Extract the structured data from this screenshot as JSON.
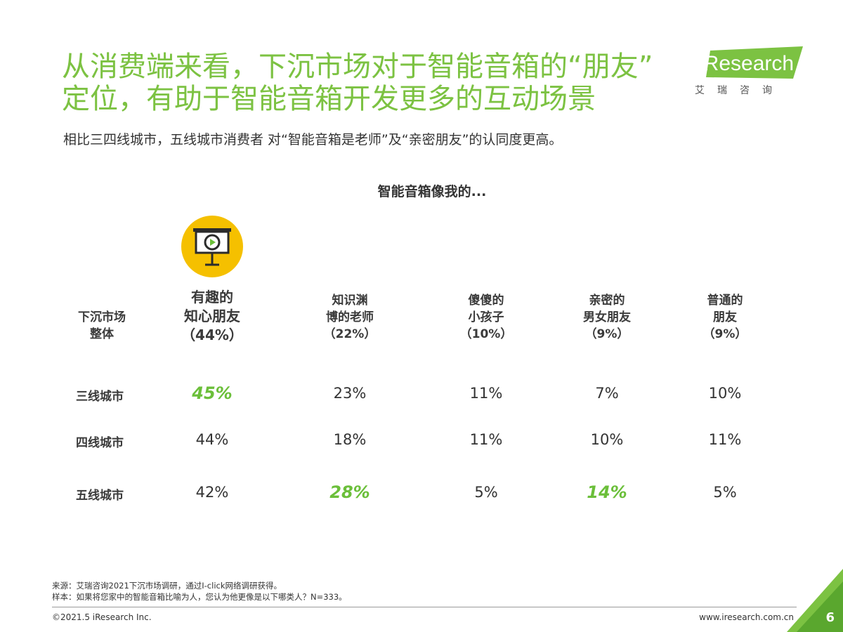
{
  "title_lines": [
    "从消费端来看，下沉市场对于智能音箱的“朋友”",
    "定位，有助于智能音箱开发更多的互动场景"
  ],
  "subtitle": "相比三四线城市，五线城市消费者 对“智能音箱是老师”及“亲密朋友”的认同度更高。",
  "logo": {
    "word": "iResearch",
    "cn": "艾瑞咨询"
  },
  "chart_title": "智能音箱像我的...",
  "icon": "presentation-play-icon",
  "chart_data": {
    "type": "table",
    "row_header": [
      "下沉市场",
      "整体"
    ],
    "columns": [
      {
        "label_lines": [
          "有趣的",
          "知心朋友",
          "（44%）"
        ],
        "overall": 44
      },
      {
        "label_lines": [
          "知识渊",
          "博的老师",
          "（22%）"
        ],
        "overall": 22
      },
      {
        "label_lines": [
          "傻傻的",
          "小孩子",
          "（10%）"
        ],
        "overall": 10
      },
      {
        "label_lines": [
          "亲密的",
          "男女朋友",
          "（9%）"
        ],
        "overall": 9
      },
      {
        "label_lines": [
          "普通的",
          "朋友",
          "（9%）"
        ],
        "overall": 9
      }
    ],
    "rows": [
      {
        "label": "三线城市",
        "values": [
          "45%",
          "23%",
          "11%",
          "7%",
          "10%"
        ],
        "highlight": [
          true,
          false,
          false,
          false,
          false
        ]
      },
      {
        "label": "四线城市",
        "values": [
          "44%",
          "18%",
          "11%",
          "10%",
          "11%"
        ],
        "highlight": [
          false,
          false,
          false,
          false,
          false
        ]
      },
      {
        "label": "五线城市",
        "values": [
          "42%",
          "28%",
          "5%",
          "14%",
          "5%"
        ],
        "highlight": [
          false,
          true,
          false,
          true,
          false
        ]
      }
    ]
  },
  "notes": {
    "source": "来源：艾瑞咨询2021下沉市场调研，通过I-click网络调研获得。",
    "sample": "样本：如果将您家中的智能音箱比喻为人，您认为他更像是以下哪类人？N=333。"
  },
  "footer": {
    "copyright": "©2021.5 iResearch Inc.",
    "website": "www.iresearch.com.cn",
    "page": "6"
  },
  "colors": {
    "accent_green": "#7cc242",
    "highlight_green": "#6bbf3a",
    "icon_yellow": "#f5c000"
  }
}
